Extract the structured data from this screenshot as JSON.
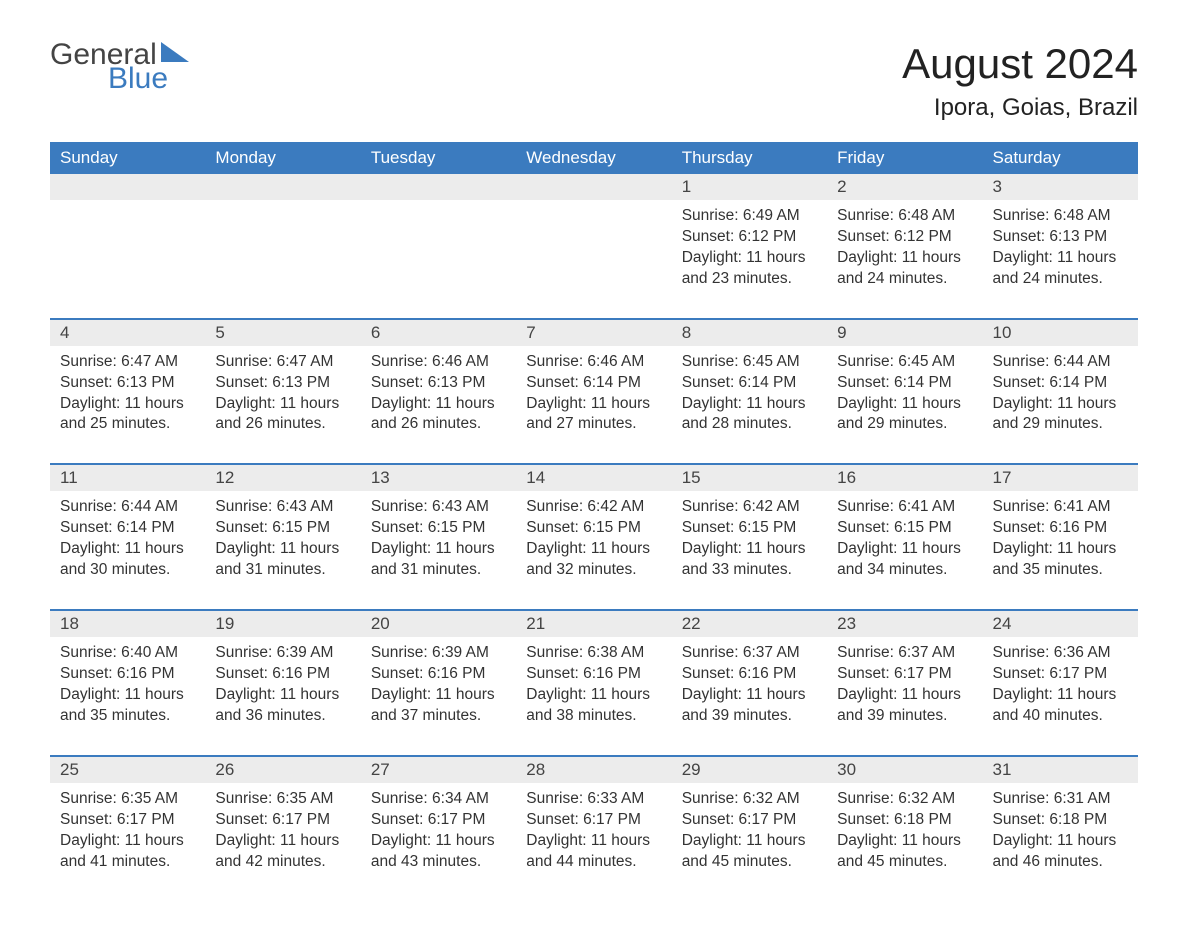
{
  "logo": {
    "text1": "General",
    "text2": "Blue",
    "triangle_color": "#3b7bbf"
  },
  "title": "August 2024",
  "location": "Ipora, Goias, Brazil",
  "colors": {
    "header_bg": "#3b7bbf",
    "header_text": "#ffffff",
    "daynum_bg": "#ececec",
    "border": "#3b7bbf",
    "text": "#333333",
    "background": "#ffffff"
  },
  "days_of_week": [
    "Sunday",
    "Monday",
    "Tuesday",
    "Wednesday",
    "Thursday",
    "Friday",
    "Saturday"
  ],
  "weeks": [
    [
      null,
      null,
      null,
      null,
      {
        "n": "1",
        "sunrise": "6:49 AM",
        "sunset": "6:12 PM",
        "daylight": "11 hours and 23 minutes."
      },
      {
        "n": "2",
        "sunrise": "6:48 AM",
        "sunset": "6:12 PM",
        "daylight": "11 hours and 24 minutes."
      },
      {
        "n": "3",
        "sunrise": "6:48 AM",
        "sunset": "6:13 PM",
        "daylight": "11 hours and 24 minutes."
      }
    ],
    [
      {
        "n": "4",
        "sunrise": "6:47 AM",
        "sunset": "6:13 PM",
        "daylight": "11 hours and 25 minutes."
      },
      {
        "n": "5",
        "sunrise": "6:47 AM",
        "sunset": "6:13 PM",
        "daylight": "11 hours and 26 minutes."
      },
      {
        "n": "6",
        "sunrise": "6:46 AM",
        "sunset": "6:13 PM",
        "daylight": "11 hours and 26 minutes."
      },
      {
        "n": "7",
        "sunrise": "6:46 AM",
        "sunset": "6:14 PM",
        "daylight": "11 hours and 27 minutes."
      },
      {
        "n": "8",
        "sunrise": "6:45 AM",
        "sunset": "6:14 PM",
        "daylight": "11 hours and 28 minutes."
      },
      {
        "n": "9",
        "sunrise": "6:45 AM",
        "sunset": "6:14 PM",
        "daylight": "11 hours and 29 minutes."
      },
      {
        "n": "10",
        "sunrise": "6:44 AM",
        "sunset": "6:14 PM",
        "daylight": "11 hours and 29 minutes."
      }
    ],
    [
      {
        "n": "11",
        "sunrise": "6:44 AM",
        "sunset": "6:14 PM",
        "daylight": "11 hours and 30 minutes."
      },
      {
        "n": "12",
        "sunrise": "6:43 AM",
        "sunset": "6:15 PM",
        "daylight": "11 hours and 31 minutes."
      },
      {
        "n": "13",
        "sunrise": "6:43 AM",
        "sunset": "6:15 PM",
        "daylight": "11 hours and 31 minutes."
      },
      {
        "n": "14",
        "sunrise": "6:42 AM",
        "sunset": "6:15 PM",
        "daylight": "11 hours and 32 minutes."
      },
      {
        "n": "15",
        "sunrise": "6:42 AM",
        "sunset": "6:15 PM",
        "daylight": "11 hours and 33 minutes."
      },
      {
        "n": "16",
        "sunrise": "6:41 AM",
        "sunset": "6:15 PM",
        "daylight": "11 hours and 34 minutes."
      },
      {
        "n": "17",
        "sunrise": "6:41 AM",
        "sunset": "6:16 PM",
        "daylight": "11 hours and 35 minutes."
      }
    ],
    [
      {
        "n": "18",
        "sunrise": "6:40 AM",
        "sunset": "6:16 PM",
        "daylight": "11 hours and 35 minutes."
      },
      {
        "n": "19",
        "sunrise": "6:39 AM",
        "sunset": "6:16 PM",
        "daylight": "11 hours and 36 minutes."
      },
      {
        "n": "20",
        "sunrise": "6:39 AM",
        "sunset": "6:16 PM",
        "daylight": "11 hours and 37 minutes."
      },
      {
        "n": "21",
        "sunrise": "6:38 AM",
        "sunset": "6:16 PM",
        "daylight": "11 hours and 38 minutes."
      },
      {
        "n": "22",
        "sunrise": "6:37 AM",
        "sunset": "6:16 PM",
        "daylight": "11 hours and 39 minutes."
      },
      {
        "n": "23",
        "sunrise": "6:37 AM",
        "sunset": "6:17 PM",
        "daylight": "11 hours and 39 minutes."
      },
      {
        "n": "24",
        "sunrise": "6:36 AM",
        "sunset": "6:17 PM",
        "daylight": "11 hours and 40 minutes."
      }
    ],
    [
      {
        "n": "25",
        "sunrise": "6:35 AM",
        "sunset": "6:17 PM",
        "daylight": "11 hours and 41 minutes."
      },
      {
        "n": "26",
        "sunrise": "6:35 AM",
        "sunset": "6:17 PM",
        "daylight": "11 hours and 42 minutes."
      },
      {
        "n": "27",
        "sunrise": "6:34 AM",
        "sunset": "6:17 PM",
        "daylight": "11 hours and 43 minutes."
      },
      {
        "n": "28",
        "sunrise": "6:33 AM",
        "sunset": "6:17 PM",
        "daylight": "11 hours and 44 minutes."
      },
      {
        "n": "29",
        "sunrise": "6:32 AM",
        "sunset": "6:17 PM",
        "daylight": "11 hours and 45 minutes."
      },
      {
        "n": "30",
        "sunrise": "6:32 AM",
        "sunset": "6:18 PM",
        "daylight": "11 hours and 45 minutes."
      },
      {
        "n": "31",
        "sunrise": "6:31 AM",
        "sunset": "6:18 PM",
        "daylight": "11 hours and 46 minutes."
      }
    ]
  ],
  "labels": {
    "sunrise": "Sunrise:",
    "sunset": "Sunset:",
    "daylight": "Daylight:"
  }
}
